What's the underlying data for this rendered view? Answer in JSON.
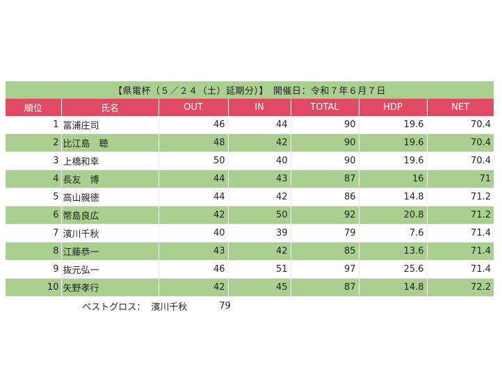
{
  "title": "【県電杯（５／２４（土）延期分）】　開催日：令和７年６月７日",
  "headers": [
    "順位",
    "氏名",
    "OUT",
    "IN",
    "TOTAL",
    "HDP",
    "NET"
  ],
  "rows": [
    {
      "rank": "1",
      "name": "冨浦庄司",
      "out": "46",
      "in": "44",
      "total": "90",
      "hdp": "19.6",
      "net": "70.4"
    },
    {
      "rank": "2",
      "name": "比江島　聴",
      "out": "48",
      "in": "42",
      "total": "90",
      "hdp": "19.6",
      "net": "70.4"
    },
    {
      "rank": "3",
      "name": "上橋和幸",
      "out": "50",
      "in": "40",
      "total": "90",
      "hdp": "19.6",
      "net": "70.4"
    },
    {
      "rank": "4",
      "name": "長友　博",
      "out": "44",
      "in": "43",
      "total": "87",
      "hdp": "16",
      "net": "71"
    },
    {
      "rank": "5",
      "name": "高山親徳",
      "out": "44",
      "in": "42",
      "total": "86",
      "hdp": "14.8",
      "net": "71.2"
    },
    {
      "rank": "6",
      "name": "幣島良広",
      "out": "42",
      "in": "50",
      "total": "92",
      "hdp": "20.8",
      "net": "71.2"
    },
    {
      "rank": "7",
      "name": "濱川千秋",
      "out": "40",
      "in": "39",
      "total": "79",
      "hdp": "7.6",
      "net": "71.4"
    },
    {
      "rank": "8",
      "name": "江藤恭一",
      "out": "43",
      "in": "42",
      "total": "85",
      "hdp": "13.6",
      "net": "71.4"
    },
    {
      "rank": "9",
      "name": "抜元弘一",
      "out": "46",
      "in": "51",
      "total": "97",
      "hdp": "25.6",
      "net": "71.4"
    },
    {
      "rank": "10",
      "name": "矢野孝行",
      "out": "42",
      "in": "45",
      "total": "87",
      "hdp": "14.8",
      "net": "72.2"
    }
  ],
  "footer": {
    "label": "ベストグロス：",
    "name": "濱川千秋",
    "score": "79"
  },
  "colors": {
    "green": "#a9d08e",
    "header_red": "#e04a63"
  }
}
